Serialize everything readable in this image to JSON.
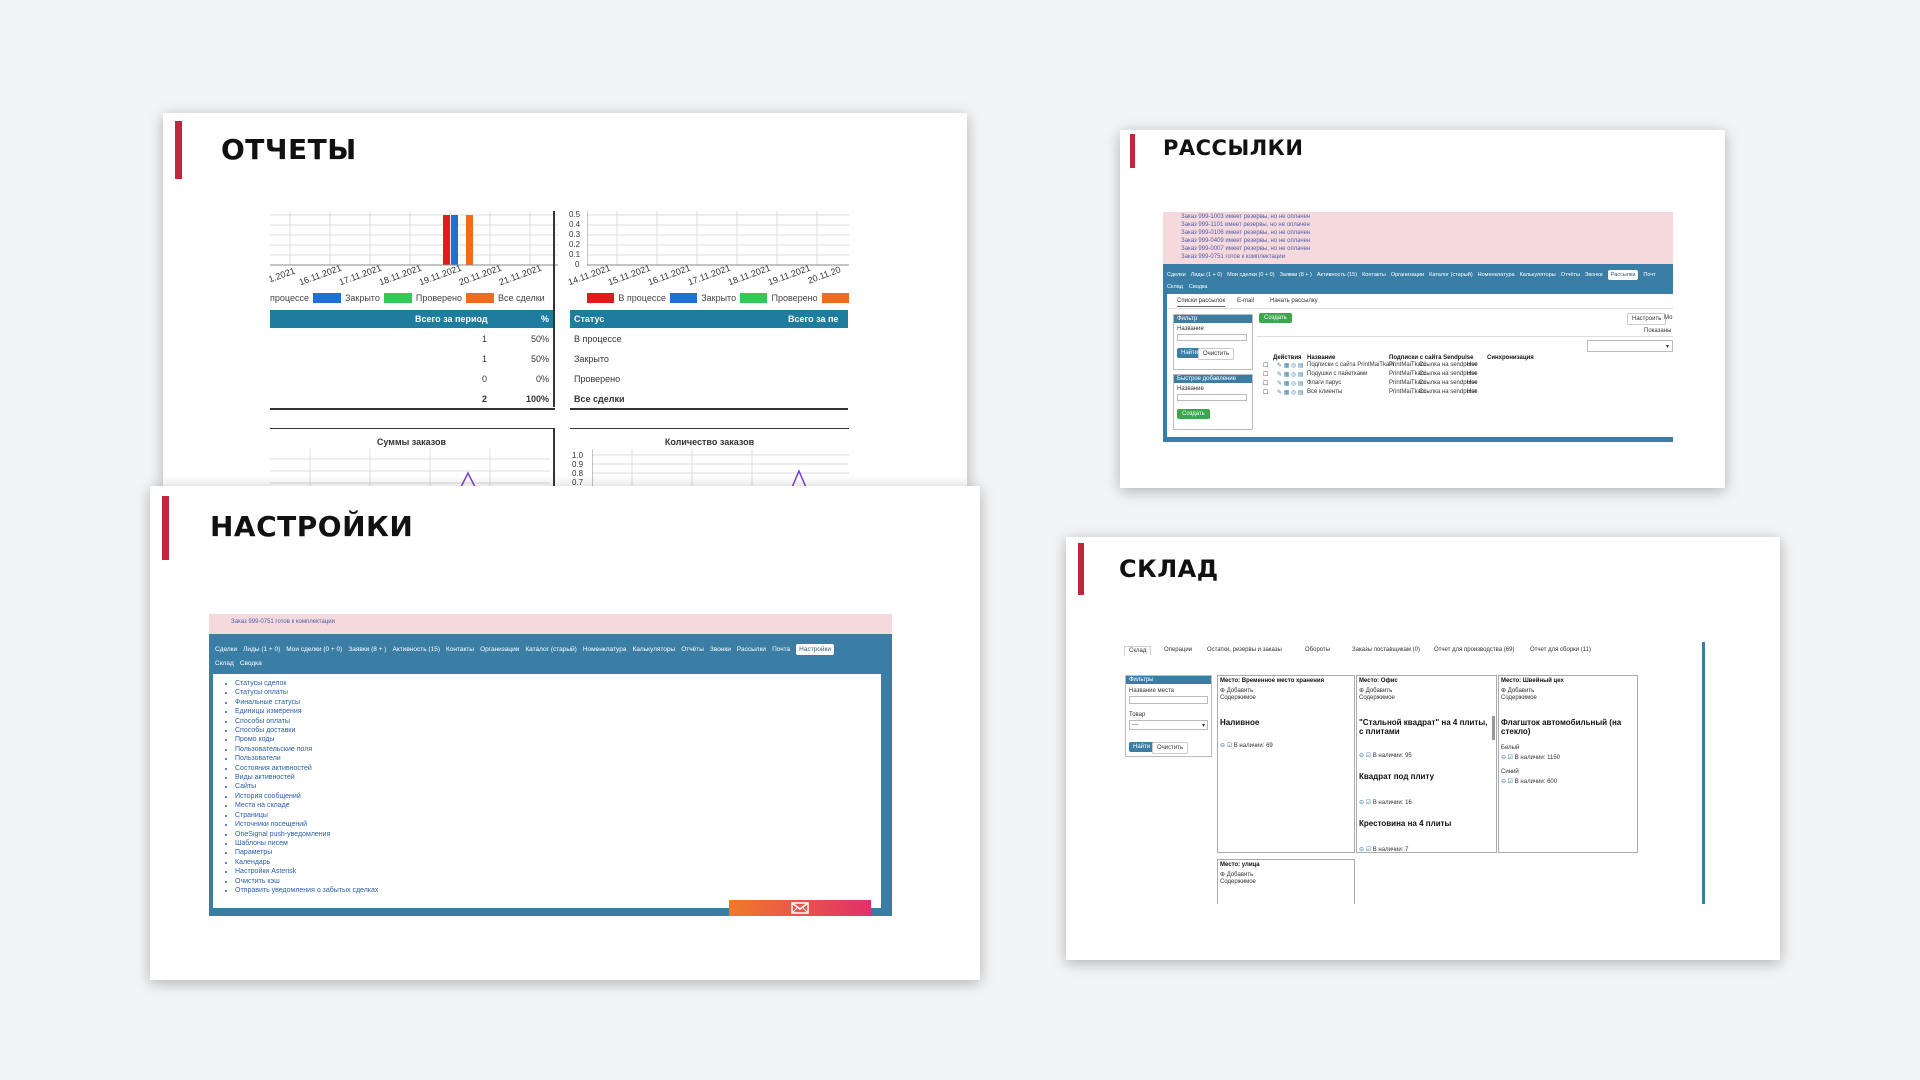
{
  "cards": {
    "reports": {
      "title": "ОТЧЕТЫ",
      "chart1_dates": [
        "1.2021",
        "16.11.2021",
        "17.11.2021",
        "18.11.2021",
        "19.11.2021",
        "20.11.2021",
        "21.11.2021"
      ],
      "chart2_dates": [
        "14.11.2021",
        "15.11.2021",
        "16.11.2021",
        "17.11.2021",
        "18.11.2021",
        "19.11.2021",
        "20.11.20"
      ],
      "chart2_yticks": [
        "0.5",
        "0.4",
        "0.3",
        "0.2",
        "0.1",
        "0"
      ],
      "legend1": [
        {
          "label": "процессе",
          "color": ""
        },
        {
          "label": "Закрыто",
          "color": "#1f6fd8"
        },
        {
          "label": "Проверено",
          "color": "#2ecc55"
        },
        {
          "label": "Все сделки",
          "color": "#f26b1d"
        }
      ],
      "legend2": [
        {
          "label": "В процессе",
          "color": "#e01b1b"
        },
        {
          "label": "Закрыто",
          "color": "#1f6fd8"
        },
        {
          "label": "Проверено",
          "color": "#2ecc55"
        },
        {
          "label": "",
          "color": "#f26b1d"
        }
      ],
      "table1_head": {
        "period": "Всего за период",
        "pct": "%"
      },
      "table1_rows": [
        {
          "count": "1",
          "pct": "50%"
        },
        {
          "count": "1",
          "pct": "50%"
        },
        {
          "count": "0",
          "pct": "0%"
        },
        {
          "count": "2",
          "pct": "100%"
        }
      ],
      "table2_head": {
        "status": "Статус",
        "period": "Всего за пе"
      },
      "table2_rows": [
        "В процессе",
        "Закрыто",
        "Проверено",
        "Все сделки"
      ],
      "bottom_chart1_title": "Суммы заказов",
      "bottom_chart2_title": "Количество заказов",
      "bottom_chart2_yticks": [
        "1.0",
        "0.9",
        "0.8",
        "0.7"
      ]
    },
    "settings": {
      "title": "НАСТРОЙКИ",
      "alert": "Заказ 999-0751 готов к комплектации",
      "nav": [
        "Сделки",
        "Лиды (1 + 0)",
        "Мои сделки (0 + 0)",
        "Заявки (8 + )",
        "Активность (15)",
        "Контакты",
        "Организации",
        "Каталог (старый)",
        "Номенклатура",
        "Калькуляторы",
        "Отчёты",
        "Звонки",
        "Рассылки",
        "Почта"
      ],
      "nav_active": "Настройки",
      "nav2": [
        "Склад",
        "Сводка"
      ],
      "items": [
        "Статусы сделок",
        "Статусы оплаты",
        "Финальные статусы",
        "Единицы измерения",
        "Способы оплаты",
        "Способы доставки",
        "Промо коды",
        "Пользовательские поля",
        "Пользователи",
        "Состояния активностей",
        "Виды активностей",
        "Сайты",
        "История сообщений",
        "Места на складе",
        "Страницы",
        "Источники посещений",
        "OneSignal push-уведомления",
        "Шаблоны писем",
        "Параметры",
        "Календарь",
        "Настройки Asterisk",
        "Очистить кэш",
        "Отправить уведомления о забытых сделках"
      ]
    },
    "mail": {
      "title": "РАССЫЛКИ",
      "alerts": [
        "Заказ 999-1003 имеет резервы, но не оплачен",
        "Заказ 999-1101 имеет резервы, но не оплачен",
        "Заказ 999-0106 имеет резервы, но не оплачен",
        "Заказ 999-0409 имеет резервы, но не оплачен",
        "Заказ 999-0007 имеет резервы, но не оплачен",
        "Заказ 999-0751 готов к комплектации"
      ],
      "nav": [
        "Сделки",
        "Лиды (1 + 0)",
        "Мои сделки (0 + 0)",
        "Заявки (8 + )",
        "Активность (15)",
        "Контакты",
        "Организации",
        "Каталог (старый)",
        "Номенклатура",
        "Калькуляторы",
        "Отчёты",
        "Звонки"
      ],
      "nav_active": "Рассылки",
      "nav_tail": "Почт",
      "nav2": [
        "Склад",
        "Сводка"
      ],
      "tabs": [
        "Списки рассылок",
        "E-mail",
        "Начать рассылку"
      ],
      "create": "Создать",
      "configure": "Настроить",
      "configure_tail": "Мо",
      "shown": "Показаны",
      "filter_head": "Фильтр",
      "filter_name": "Название",
      "find": "Найти",
      "clear": "Очистить",
      "quick_add": "Быстрое добавление",
      "quick_name": "Название",
      "quick_create": "Создать",
      "table_head": {
        "actions": "Действия",
        "name": "Название",
        "subs": "Подписки с сайта Sendpulse",
        "sync": "Синхронизация"
      },
      "rows": [
        {
          "name": "Подписки с сайта PrintMaiTkani",
          "site": "PrintMaiTkani",
          "link": "Ссылка на sendpulse",
          "sync": "Нет"
        },
        {
          "name": "Подушки с пайетками",
          "site": "PrintMaiTkani",
          "link": "Ссылка на sendpulse",
          "sync": "Нет"
        },
        {
          "name": "Флаги парус",
          "site": "PrintMaiTkani",
          "link": "Ссылка на sendpulse",
          "sync": "Нет"
        },
        {
          "name": "Все клиенты",
          "site": "PrintMaiTkani",
          "link": "Ссылка на sendpulse",
          "sync": "Нет"
        }
      ]
    },
    "stock": {
      "title": "СКЛАД",
      "tabs": [
        "Склад",
        "Операции",
        "Остатки, резервы и заказы",
        "Обороты",
        "Заказы поставщикам (0)",
        "Отчет для производства (69)",
        "Отчет для сборки (11)"
      ],
      "filters": "Фильтры",
      "place_name": "Название места",
      "product": "Товар",
      "product_placeholder": "---",
      "find": "Найти",
      "clear": "Очистить",
      "columns": [
        {
          "head": "Место: Временное место хранения",
          "add": "Добавить",
          "content": "Содержимое",
          "items": [
            {
              "name": "Наливное",
              "stock": "В наличии: 69"
            }
          ]
        },
        {
          "head": "Место: Офис",
          "add": "Добавить",
          "content": "Содержимое",
          "items": [
            {
              "name": "\"Стальной квадрат\" на 4 плиты, с плитами",
              "stock": "В наличии: 95"
            },
            {
              "name": "Квадрат под плиту",
              "stock": "В наличии: 16"
            },
            {
              "name": "Крестовина на 4 плиты",
              "stock": "В наличии: 7"
            }
          ]
        },
        {
          "head": "Место: Швейный цех",
          "add": "Добавить",
          "content": "Содержимое",
          "items": [
            {
              "name": "Флагшток автомобильный (на стекло)",
              "sub": "Белый",
              "stock": "В наличии: 1150"
            },
            {
              "name": "",
              "sub": "Синий",
              "stock": "В наличии: 600"
            }
          ]
        }
      ],
      "street": {
        "head": "Место: улица",
        "add": "Добавить",
        "content": "Содержимое"
      }
    }
  }
}
